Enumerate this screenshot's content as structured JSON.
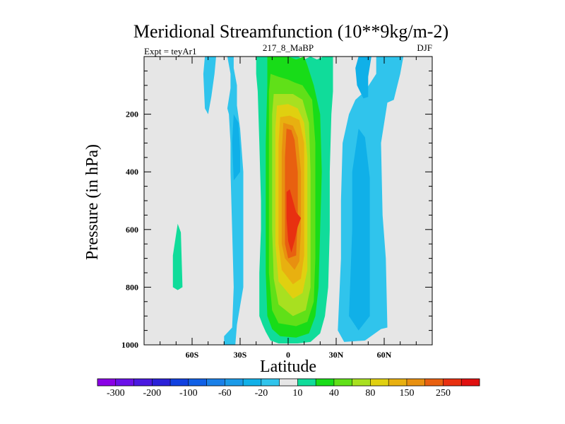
{
  "chart_data": {
    "type": "contour",
    "title": "Meridional Streamfunction (10**9kg/m-2)",
    "subtitle_left": "Expt = teyAr1",
    "subtitle_center": "217_8_MaBP",
    "subtitle_right": "DJF",
    "xlabel": "Latitude",
    "ylabel": "Pressure (in hPa)",
    "xlim": [
      -90,
      90
    ],
    "ylim": [
      0,
      1000
    ],
    "y_inverted": true,
    "x_ticks": [
      {
        "value": -60,
        "label": "60S"
      },
      {
        "value": -30,
        "label": "30S"
      },
      {
        "value": 0,
        "label": "0"
      },
      {
        "value": 30,
        "label": "30N"
      },
      {
        "value": 60,
        "label": "60N"
      }
    ],
    "y_ticks": [
      {
        "value": 200,
        "label": "200"
      },
      {
        "value": 400,
        "label": "400"
      },
      {
        "value": 600,
        "label": "600"
      },
      {
        "value": 800,
        "label": "800"
      },
      {
        "value": 1000,
        "label": "1000"
      }
    ],
    "colorbar": {
      "levels": [
        -300,
        -250,
        -200,
        -150,
        -100,
        -80,
        -60,
        -40,
        -20,
        -10,
        10,
        20,
        40,
        60,
        80,
        100,
        150,
        200,
        250,
        300
      ],
      "labels": [
        "-300",
        "-200",
        "-100",
        "-60",
        "-20",
        "10",
        "40",
        "80",
        "150",
        "250"
      ],
      "colors": [
        "#8A00E6",
        "#6A10E8",
        "#4A18E0",
        "#2A20D8",
        "#1040E0",
        "#1060E6",
        "#1A80E8",
        "#1A9AE8",
        "#10B0E8",
        "#30C4EC",
        "#E6E6E6",
        "#10DC9A",
        "#18DC18",
        "#60E018",
        "#A8E020",
        "#E0D010",
        "#E8B010",
        "#E89010",
        "#E86010",
        "#E83010",
        "#E01010"
      ]
    },
    "regions": [
      {
        "level": -10,
        "points": [
          [
            -38,
            0
          ],
          [
            -36,
            60
          ],
          [
            -36,
            110
          ],
          [
            -38,
            180
          ],
          [
            -37,
            200
          ],
          [
            -36,
            300
          ],
          [
            -36,
            400
          ],
          [
            -35,
            600
          ],
          [
            -34,
            800
          ],
          [
            -35,
            940
          ],
          [
            -40,
            970
          ],
          [
            -40,
            1000
          ],
          [
            -33,
            1000
          ],
          [
            -32,
            930
          ],
          [
            -28,
            800
          ],
          [
            -28,
            600
          ],
          [
            -28,
            400
          ],
          [
            -30,
            250
          ],
          [
            -32,
            170
          ],
          [
            -32,
            100
          ],
          [
            -34,
            40
          ],
          [
            -34,
            0
          ]
        ]
      },
      {
        "level": -10,
        "points": [
          [
            -52,
            0
          ],
          [
            -53,
            60
          ],
          [
            -52,
            180
          ],
          [
            -50,
            200
          ],
          [
            -48,
            140
          ],
          [
            -46,
            60
          ],
          [
            -45,
            0
          ]
        ]
      },
      {
        "level": -10,
        "points": [
          [
            55,
            0
          ],
          [
            58,
            0
          ],
          [
            62,
            0
          ],
          [
            72,
            0
          ],
          [
            70,
            60
          ],
          [
            66,
            150
          ],
          [
            62,
            160
          ],
          [
            58,
            300
          ],
          [
            59,
            550
          ],
          [
            61,
            700
          ],
          [
            62,
            940
          ],
          [
            58,
            945
          ],
          [
            48,
            985
          ],
          [
            35,
            990
          ],
          [
            31,
            950
          ],
          [
            33,
            700
          ],
          [
            33,
            500
          ],
          [
            34,
            300
          ],
          [
            38,
            200
          ],
          [
            42,
            150
          ],
          [
            48,
            120
          ],
          [
            55,
            60
          ]
        ]
      },
      {
        "level": -20,
        "points": [
          [
            -34,
            200
          ],
          [
            -31,
            230
          ],
          [
            -30,
            330
          ],
          [
            -30,
            400
          ],
          [
            -34,
            430
          ],
          [
            -35,
            300
          ]
        ]
      },
      {
        "level": -20,
        "points": [
          [
            44,
            0
          ],
          [
            52,
            0
          ],
          [
            50,
            70
          ],
          [
            50,
            140
          ],
          [
            47,
            145
          ],
          [
            43,
            100
          ],
          [
            42,
            40
          ]
        ]
      },
      {
        "level": -20,
        "points": [
          [
            44,
            250
          ],
          [
            48,
            280
          ],
          [
            51,
            420
          ],
          [
            51,
            650
          ],
          [
            51,
            900
          ],
          [
            44,
            950
          ],
          [
            38,
            900
          ],
          [
            40,
            600
          ],
          [
            40,
            400
          ]
        ]
      },
      {
        "level": 10,
        "points": [
          [
            -72,
            690
          ],
          [
            -69,
            580
          ],
          [
            -67,
            610
          ],
          [
            -66,
            800
          ],
          [
            -69,
            810
          ],
          [
            -72,
            800
          ]
        ]
      },
      {
        "level": 10,
        "points": [
          [
            -20,
            0
          ],
          [
            -20,
            60
          ],
          [
            -19,
            120
          ],
          [
            -18,
            300
          ],
          [
            -17,
            500
          ],
          [
            -17,
            600
          ],
          [
            -18,
            750
          ],
          [
            -18,
            900
          ],
          [
            -16,
            930
          ],
          [
            -14,
            955
          ],
          [
            -11,
            985
          ],
          [
            -6,
            995
          ],
          [
            6,
            995
          ],
          [
            14,
            990
          ],
          [
            20,
            960
          ],
          [
            23,
            900
          ],
          [
            25,
            800
          ],
          [
            26,
            600
          ],
          [
            26,
            400
          ],
          [
            27,
            200
          ],
          [
            28,
            120
          ],
          [
            28,
            0
          ],
          [
            22,
            0
          ],
          [
            18,
            10
          ],
          [
            14,
            0
          ],
          [
            10,
            10
          ],
          [
            6,
            0
          ]
        ]
      },
      {
        "level": 20,
        "points": [
          [
            -13,
            0
          ],
          [
            -13,
            100
          ],
          [
            -14,
            300
          ],
          [
            -14,
            500
          ],
          [
            -14,
            750
          ],
          [
            -13,
            900
          ],
          [
            -10,
            945
          ],
          [
            -5,
            970
          ],
          [
            5,
            975
          ],
          [
            13,
            960
          ],
          [
            17,
            900
          ],
          [
            19,
            800
          ],
          [
            20,
            600
          ],
          [
            21,
            400
          ],
          [
            20,
            200
          ],
          [
            16,
            100
          ],
          [
            12,
            30
          ],
          [
            10,
            0
          ],
          [
            5,
            10
          ],
          [
            0,
            0
          ]
        ]
      },
      {
        "level": 40,
        "points": [
          [
            -11,
            60
          ],
          [
            -12,
            120
          ],
          [
            -12,
            300
          ],
          [
            -12,
            500
          ],
          [
            -12,
            750
          ],
          [
            -10,
            880
          ],
          [
            -6,
            925
          ],
          [
            5,
            935
          ],
          [
            12,
            920
          ],
          [
            16,
            850
          ],
          [
            17,
            700
          ],
          [
            17,
            500
          ],
          [
            17,
            300
          ],
          [
            15,
            150
          ],
          [
            9,
            100
          ],
          [
            4,
            90
          ],
          [
            0,
            80
          ],
          [
            -6,
            70
          ]
        ]
      },
      {
        "level": 60,
        "points": [
          [
            -9,
            130
          ],
          [
            -10,
            200
          ],
          [
            -10,
            400
          ],
          [
            -10,
            600
          ],
          [
            -9,
            770
          ],
          [
            -6,
            860
          ],
          [
            3,
            900
          ],
          [
            11,
            880
          ],
          [
            14,
            800
          ],
          [
            14,
            600
          ],
          [
            14,
            400
          ],
          [
            13,
            230
          ],
          [
            9,
            150
          ],
          [
            3,
            130
          ]
        ]
      },
      {
        "level": 80,
        "points": [
          [
            -7,
            170
          ],
          [
            -8,
            250
          ],
          [
            -8,
            450
          ],
          [
            -8,
            650
          ],
          [
            -6,
            780
          ],
          [
            3,
            840
          ],
          [
            9,
            820
          ],
          [
            12,
            740
          ],
          [
            12,
            550
          ],
          [
            12,
            350
          ],
          [
            10,
            230
          ],
          [
            6,
            180
          ],
          [
            0,
            165
          ]
        ]
      },
      {
        "level": 100,
        "points": [
          [
            -5,
            210
          ],
          [
            -6,
            300
          ],
          [
            -6,
            500
          ],
          [
            -6,
            650
          ],
          [
            -4,
            740
          ],
          [
            3,
            790
          ],
          [
            8,
            770
          ],
          [
            10,
            690
          ],
          [
            10,
            500
          ],
          [
            10,
            300
          ],
          [
            7,
            220
          ],
          [
            1,
            205
          ]
        ]
      },
      {
        "level": 150,
        "points": [
          [
            -3,
            230
          ],
          [
            -4,
            330
          ],
          [
            -4,
            500
          ],
          [
            -4,
            650
          ],
          [
            -2,
            700
          ],
          [
            4,
            740
          ],
          [
            7,
            710
          ],
          [
            8,
            600
          ],
          [
            8,
            400
          ],
          [
            6,
            280
          ],
          [
            3,
            240
          ]
        ]
      },
      {
        "level": 200,
        "points": [
          [
            -1,
            250
          ],
          [
            -2,
            350
          ],
          [
            -2,
            500
          ],
          [
            -2,
            650
          ],
          [
            0,
            700
          ],
          [
            5,
            690
          ],
          [
            6,
            550
          ],
          [
            6,
            400
          ],
          [
            4,
            290
          ],
          [
            2,
            255
          ]
        ]
      },
      {
        "level": 250,
        "points": [
          [
            -1,
            470
          ],
          [
            -1,
            560
          ],
          [
            0,
            640
          ],
          [
            2,
            680
          ],
          [
            4,
            640
          ],
          [
            6,
            590
          ],
          [
            8,
            560
          ],
          [
            5,
            540
          ],
          [
            3,
            500
          ],
          [
            1,
            460
          ]
        ]
      }
    ]
  }
}
